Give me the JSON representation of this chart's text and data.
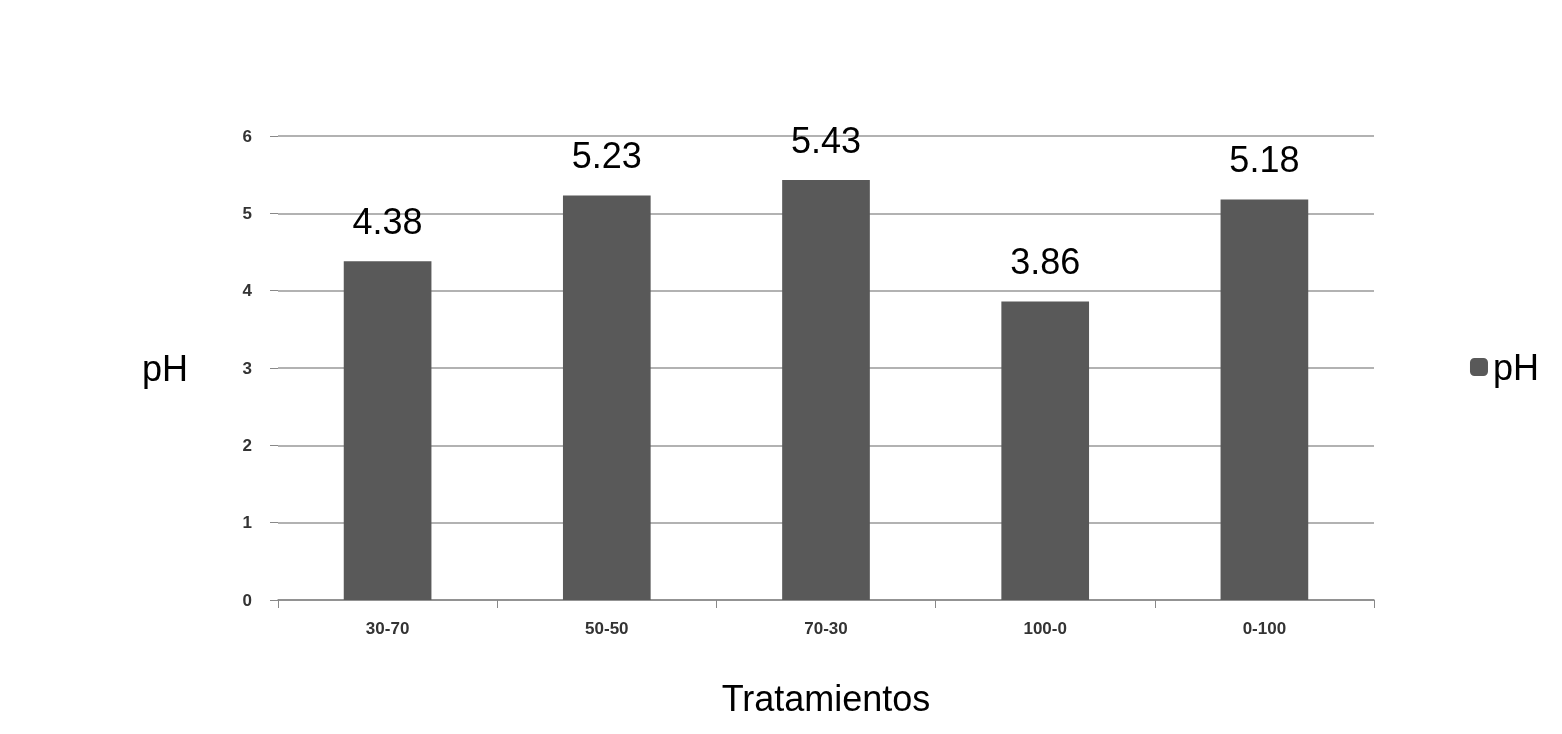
{
  "chart_data": {
    "type": "bar",
    "xlabel": "Tratamientos",
    "ylabel": "pH",
    "categories": [
      "30-70",
      "50-50",
      "70-30",
      "100-0",
      "0-100"
    ],
    "series": [
      {
        "name": "pH",
        "color": "#595959",
        "values": [
          4.38,
          5.23,
          5.43,
          3.86,
          5.18
        ]
      }
    ],
    "ylim": [
      0,
      6
    ],
    "yticks": [
      0,
      1,
      2,
      3,
      4,
      5,
      6
    ],
    "grid": "y",
    "legend": "right",
    "data_labels": true
  }
}
